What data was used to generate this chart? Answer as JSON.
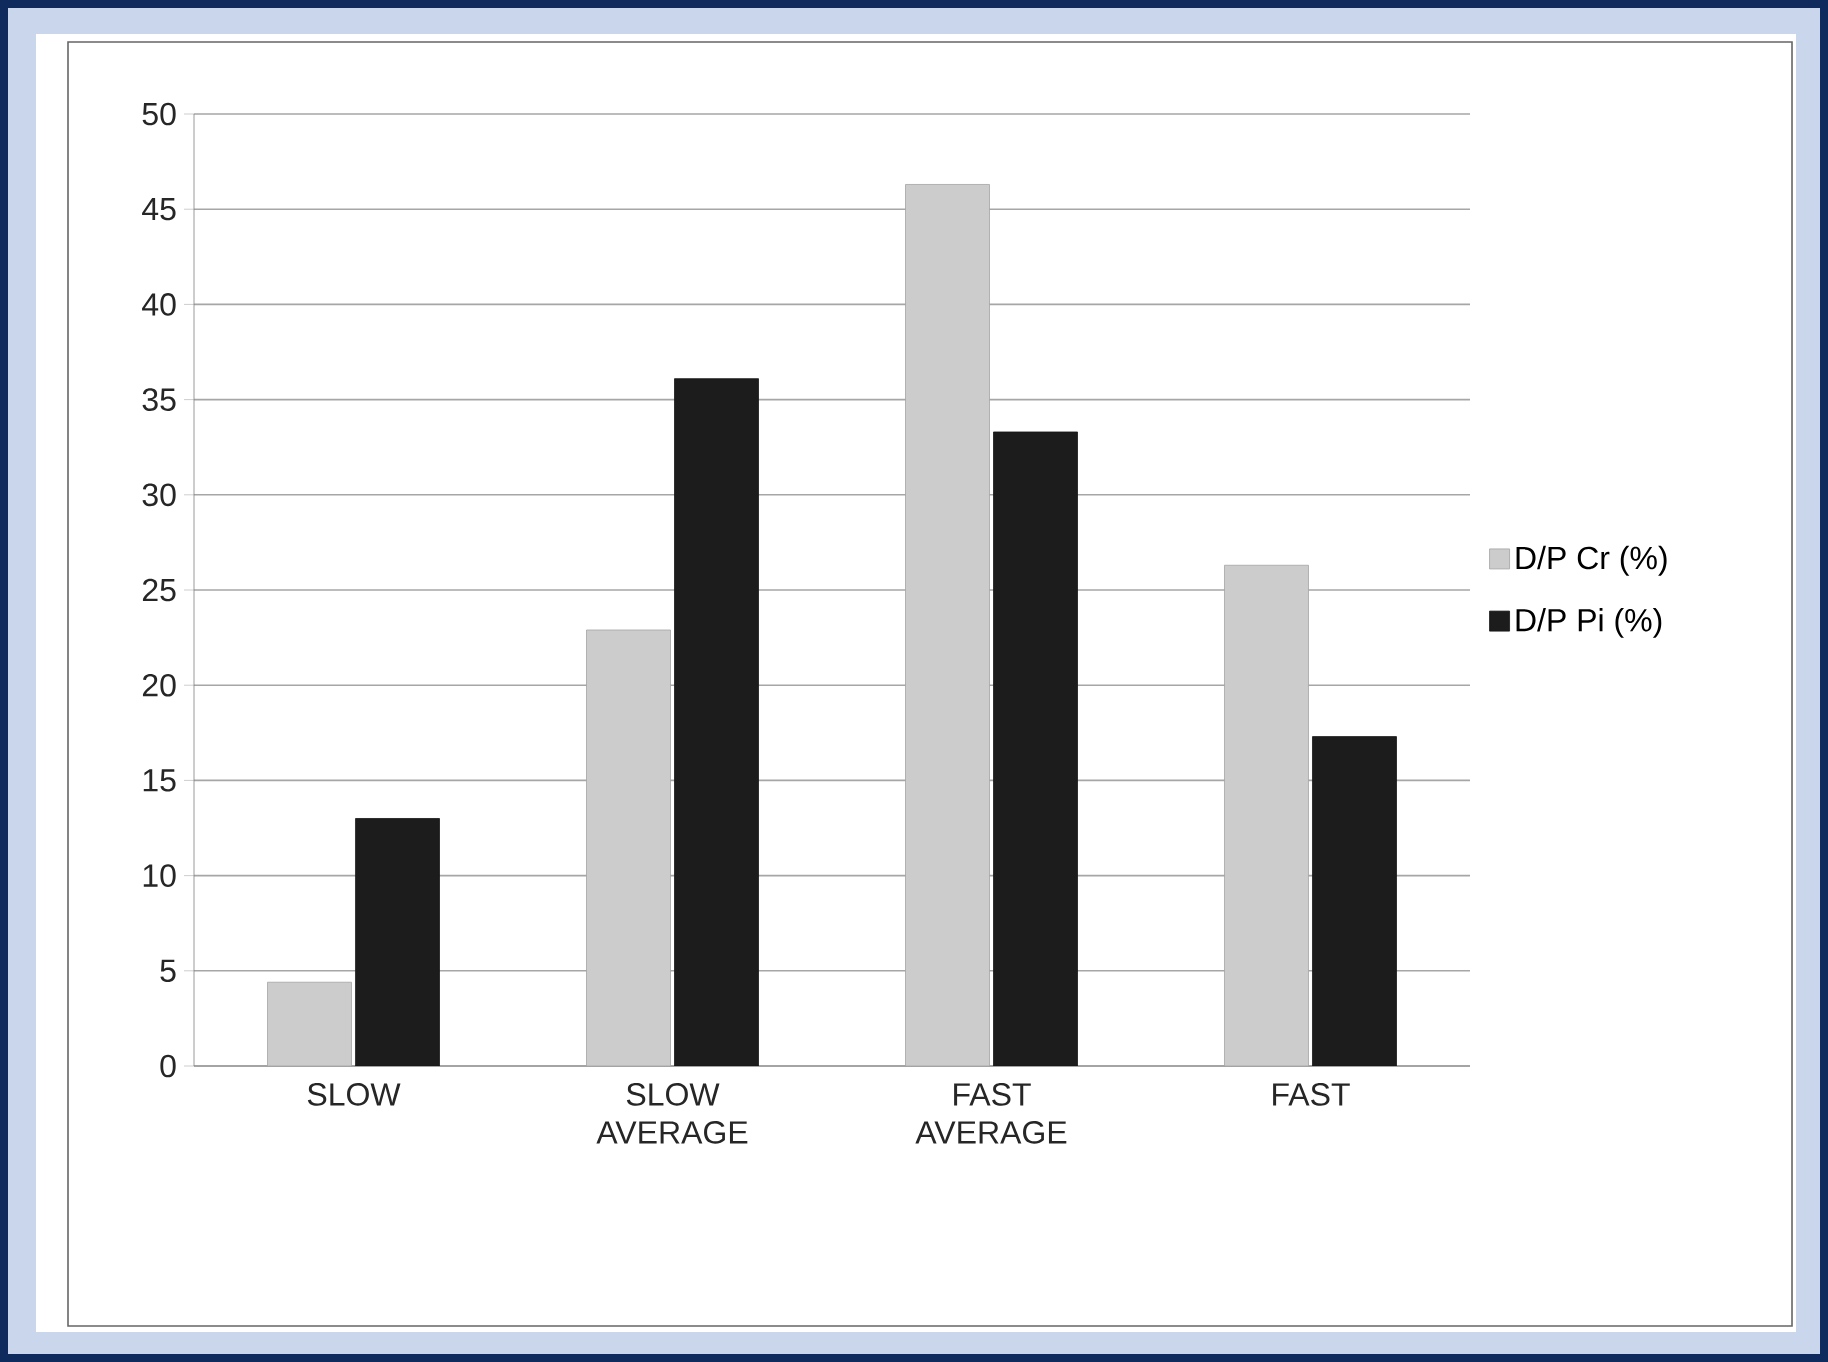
{
  "chart_data": {
    "type": "bar",
    "categories": [
      "SLOW",
      "SLOW AVERAGE",
      "FAST AVERAGE",
      "FAST"
    ],
    "series": [
      {
        "name": "D/P Cr (%)",
        "color": "#cccccc",
        "values": [
          4.4,
          22.9,
          46.3,
          26.3
        ]
      },
      {
        "name": "D/P Pi (%)",
        "color": "#1c1c1c",
        "values": [
          13.0,
          36.1,
          33.3,
          17.3
        ]
      }
    ],
    "ylim": [
      0,
      50
    ],
    "yticks": [
      0,
      5,
      10,
      15,
      20,
      25,
      30,
      35,
      40,
      45,
      50
    ],
    "grid": "y",
    "legend": "right"
  }
}
